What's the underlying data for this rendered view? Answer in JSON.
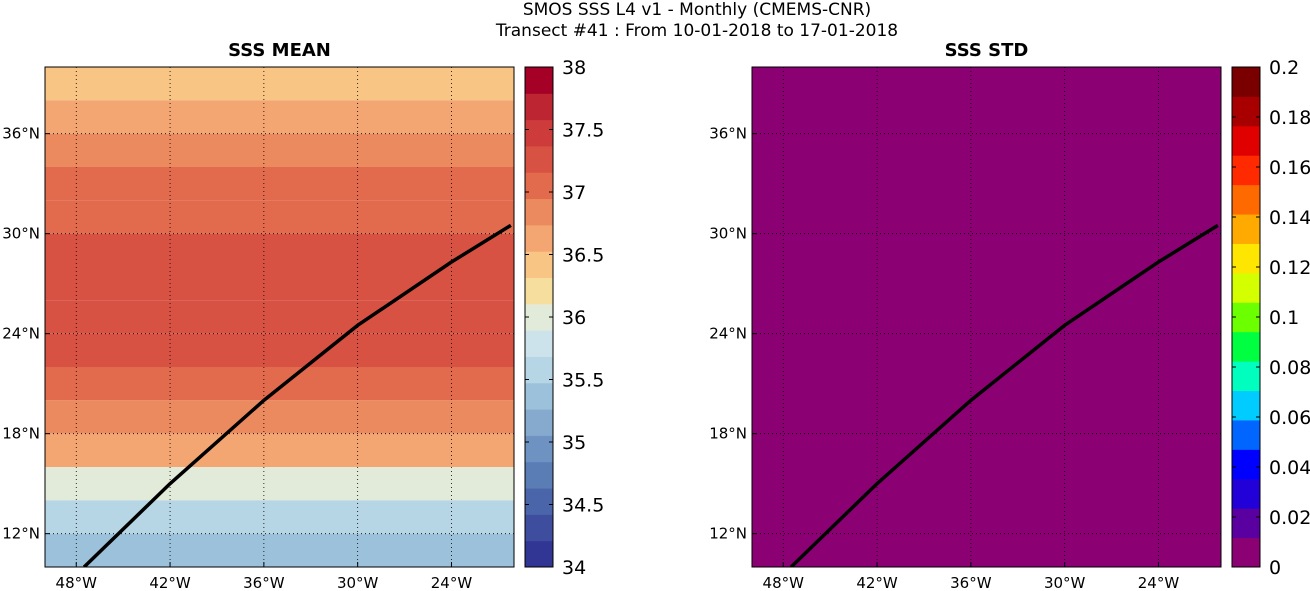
{
  "header": {
    "line1": "SMOS SSS L4 v1 - Monthly (CMEMS-CNR)",
    "line2": "Transect #41 : From 10-01-2018 to 17-01-2018"
  },
  "chart_data": [
    {
      "type": "heatmap",
      "title": "SSS MEAN",
      "xlabel": "",
      "ylabel": "",
      "x_ticks": [
        "48°W",
        "42°W",
        "36°W",
        "30°W",
        "24°W"
      ],
      "x_tick_values": [
        -48,
        -42,
        -36,
        -30,
        -24
      ],
      "y_ticks": [
        "12°N",
        "18°N",
        "24°N",
        "30°N",
        "36°N"
      ],
      "y_tick_values": [
        12,
        18,
        24,
        30,
        36
      ],
      "xlim": [
        -50,
        -20
      ],
      "ylim": [
        10,
        40
      ],
      "grid": true,
      "colorbar": {
        "range": [
          34,
          38
        ],
        "ticks": [
          "34",
          "34.5",
          "35",
          "35.5",
          "36",
          "36.5",
          "37",
          "37.5",
          "38"
        ],
        "tick_values": [
          34,
          34.5,
          35,
          35.5,
          36,
          36.5,
          37,
          37.5,
          38
        ],
        "colors": [
          "#313695",
          "#3f4d9e",
          "#4a65a9",
          "#5a7db5",
          "#6e93c2",
          "#85aace",
          "#9cc2db",
          "#b6d5e5",
          "#cce3eb",
          "#e2ebd9",
          "#f6df9e",
          "#f8c585",
          "#f3a671",
          "#ec8a5f",
          "#e26b4d",
          "#d85243",
          "#cd3b3a",
          "#bd2533",
          "#a50026"
        ]
      },
      "transect": {
        "x": [
          -47.5,
          -42,
          -36,
          -30,
          -24,
          -20.2
        ],
        "y": [
          10,
          15,
          20,
          24.5,
          28.3,
          30.5
        ]
      },
      "field_bands": [
        {
          "lat": 39,
          "value": 36.4
        },
        {
          "lat": 37,
          "value": 36.6
        },
        {
          "lat": 35,
          "value": 36.8
        },
        {
          "lat": 33,
          "value": 37.0
        },
        {
          "lat": 31,
          "value": 37.1
        },
        {
          "lat": 29,
          "value": 37.2
        },
        {
          "lat": 27,
          "value": 37.3
        },
        {
          "lat": 25,
          "value": 37.3
        },
        {
          "lat": 23,
          "value": 37.2
        },
        {
          "lat": 21,
          "value": 37.1
        },
        {
          "lat": 19,
          "value": 36.9
        },
        {
          "lat": 17,
          "value": 36.6
        },
        {
          "lat": 15,
          "value": 36.1
        },
        {
          "lat": 13,
          "value": 35.6
        },
        {
          "lat": 11,
          "value": 35.3
        }
      ]
    },
    {
      "type": "heatmap",
      "title": "SSS STD",
      "xlabel": "",
      "ylabel": "",
      "x_ticks": [
        "48°W",
        "42°W",
        "36°W",
        "30°W",
        "24°W"
      ],
      "x_tick_values": [
        -48,
        -42,
        -36,
        -30,
        -24
      ],
      "y_ticks": [
        "12°N",
        "18°N",
        "24°N",
        "30°N",
        "36°N"
      ],
      "y_tick_values": [
        12,
        18,
        24,
        30,
        36
      ],
      "xlim": [
        -50,
        -20
      ],
      "ylim": [
        10,
        40
      ],
      "grid": true,
      "field_value": 0,
      "field_color": "#8b0073",
      "colorbar": {
        "range": [
          0,
          0.2
        ],
        "ticks": [
          "0",
          "0.02",
          "0.04",
          "0.06",
          "0.08",
          "0.1",
          "0.12",
          "0.14",
          "0.16",
          "0.18",
          "0.2"
        ],
        "tick_values": [
          0,
          0.02,
          0.04,
          0.06,
          0.08,
          0.1,
          0.12,
          0.14,
          0.16,
          0.18,
          0.2
        ],
        "colors": [
          "#8b0073",
          "#5a00a0",
          "#2200d8",
          "#0000ff",
          "#0066ff",
          "#00ccff",
          "#00ffbf",
          "#00ff40",
          "#6cff00",
          "#d4ff00",
          "#ffe600",
          "#ffaa00",
          "#ff6a00",
          "#ff2a00",
          "#e00000",
          "#a80000",
          "#7a0000"
        ]
      },
      "transect": {
        "x": [
          -47.5,
          -42,
          -36,
          -30,
          -24,
          -20.2
        ],
        "y": [
          10,
          15,
          20,
          24.5,
          28.3,
          30.5
        ]
      }
    }
  ]
}
